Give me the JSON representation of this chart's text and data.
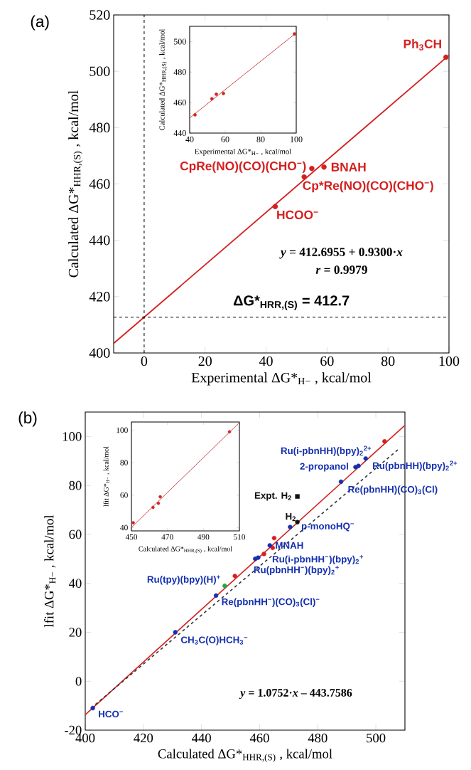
{
  "chart_data": [
    {
      "type": "scatter",
      "title": "(a)",
      "xlabel": "Experimental ΔG*$_{H−}$ , kcal/mol",
      "ylabel": "Calculated ΔG*$_{HHR,(S)}$ , kcal/mol",
      "xlim": [
        -10,
        100
      ],
      "ylim": [
        400,
        520
      ],
      "xticks": [
        0,
        20,
        40,
        60,
        80,
        100
      ],
      "yticks": [
        400,
        420,
        440,
        460,
        480,
        500,
        520
      ],
      "series": [
        {
          "marker": "circle",
          "color": "#d42020",
          "x": [
            43,
            52.5,
            55,
            59,
            99
          ],
          "values": [
            452,
            462.5,
            465.5,
            466,
            505
          ]
        },
        {
          "type": "line",
          "marker": "none",
          "color": "#d42020",
          "x": [
            -10,
            100
          ],
          "values": [
            403.4,
            505.7
          ]
        }
      ],
      "ref_lines": [
        {
          "axis": "x",
          "value": 0,
          "line_style": "dashed"
        },
        {
          "axis": "y",
          "value": 412.7,
          "label": "ΔG*$_{HRR,(S)}$ = 412.7",
          "line_style": "dashed"
        }
      ],
      "annotations": [
        {
          "text": "Ph$_{3}$CH",
          "x": 99,
          "y": 505
        },
        {
          "text": "CpRe(NO)(CO)(CHO$^{−}$)",
          "x": 55,
          "y": 465.5
        },
        {
          "text": "BNAH",
          "x": 59,
          "y": 466
        },
        {
          "text": "Cp*Re(NO)(CO)(CHO$^{−}$)",
          "x": 52.5,
          "y": 462.5
        },
        {
          "text": "HCOO$^{−}$",
          "x": 43,
          "y": 452
        },
        "*y* = 412.6955 + 0.9300·*x*",
        "*r* = 0.9979"
      ]
    },
    {
      "type": "scatter",
      "xlabel": "Experimental ΔG*$_{H−}$ , kcal/mol",
      "ylabel": "Calculated ΔG*$_{HHR,(S)}$ , kcal/mol",
      "xlim": [
        40,
        100
      ],
      "ylim": [
        440,
        510
      ],
      "xticks": [
        40,
        60,
        80,
        100
      ],
      "yticks": [
        440,
        460,
        480,
        500
      ],
      "series": [
        {
          "marker": "circle",
          "color": "#d42020",
          "x": [
            43,
            52.5,
            55,
            59,
            99
          ],
          "values": [
            452,
            462.5,
            465.5,
            466,
            505
          ]
        },
        {
          "type": "line",
          "marker": "none",
          "color": "#c83c3c",
          "x": [
            40,
            100
          ],
          "values": [
            449.9,
            505.7
          ]
        }
      ]
    },
    {
      "type": "scatter",
      "title": "(b)",
      "xlabel": "Calculated ΔG*$_{HHR,(S)}$ , kcal/mol",
      "ylabel": "lfit ΔG*$_{H−}$ , kcal/mol",
      "xlim": [
        400,
        510
      ],
      "ylim": [
        -20,
        110
      ],
      "xticks": [
        400,
        420,
        440,
        460,
        480,
        500
      ],
      "yticks": [
        -20,
        0,
        20,
        40,
        60,
        80,
        100
      ],
      "series": [
        {
          "type": "line",
          "marker": "none",
          "color": "#d42020",
          "x": [
            400,
            510
          ],
          "values": [
            -13.7,
            104.6
          ]
        },
        {
          "type": "line",
          "marker": "none",
          "line_style": "dashed",
          "color": "#333333",
          "x": [
            402,
            508
          ],
          "values": [
            -11,
            95
          ]
        },
        {
          "marker": "circle",
          "color": "#d42020",
          "x": [
            451.5,
            461.5,
            464.5,
            465,
            503
          ],
          "values": [
            43,
            52,
            54.5,
            58.5,
            98
          ]
        },
        {
          "marker": "circle",
          "color": "#1530b0",
          "colors": [
            "#1530b0",
            "#1530b0",
            "#1530b0",
            "#22aa44",
            "#1530b0",
            "#1530b0",
            "#1530b0",
            "#1530b0",
            "#1530b0",
            "#1530b0",
            "#1530b0",
            "#1530b0"
          ],
          "x": [
            402.6,
            431,
            445,
            448,
            458.5,
            459.5,
            463.5,
            470.5,
            488,
            493,
            494,
            496.5
          ],
          "values": [
            -11,
            20,
            35,
            39,
            50,
            50.5,
            55.5,
            63,
            81.5,
            87.5,
            88,
            91
          ]
        },
        {
          "marker": "circle",
          "color": "#111111",
          "x": [
            473
          ],
          "values": [
            65
          ]
        },
        {
          "marker": "square",
          "color": "#111111",
          "x": [
            473
          ],
          "values": [
            75.5
          ]
        }
      ],
      "annotations": [
        {
          "text": "HCO$^{−}$",
          "x": 402.6,
          "y": -11
        },
        {
          "text": "CH$_{3}$C(O)HCH$_{3}$$^{−}$",
          "x": 431,
          "y": 20
        },
        {
          "text": "Re(pbnHH$^{−}$)(CO)$_{3}$(Cl)$^{−}$",
          "x": 445,
          "y": 35
        },
        {
          "text": "Ru(tpy)(bpy)(H)$^{+}$",
          "x": 448,
          "y": 39
        },
        {
          "text": "Ru(pbnHH$^{−}$)(bpy)$_{2}$$^{+}$",
          "x": 458.5,
          "y": 50
        },
        {
          "text": "Ru(i-pbnHH$^{−}$)(bpy)$_{2}$$^{+}$",
          "x": 459.5,
          "y": 50.5
        },
        {
          "text": "MNAH",
          "x": 463.5,
          "y": 55.5
        },
        {
          "text": "p-monoHQ$^{−}$",
          "x": 470.5,
          "y": 63
        },
        {
          "text": "H$_{2}$",
          "x": 473,
          "y": 65
        },
        {
          "text": "Expt. H$_{2}$",
          "x": 473,
          "y": 75.5
        },
        {
          "text": "Re(pbnHH)(CO)$_{3}$(Cl)",
          "x": 488,
          "y": 81.5
        },
        {
          "text": "2-propanol",
          "x": 493,
          "y": 87.5
        },
        {
          "text": "Ru(pbnHH)(bpy)$_{2}$$^{2+}$",
          "x": 494,
          "y": 88
        },
        {
          "text": "Ru(i-pbnHH)(bpy)$_{2}$$^{2+}$",
          "x": 496.5,
          "y": 91
        },
        "*y* = 1.0752·*x* – 443.7586"
      ]
    },
    {
      "type": "scatter",
      "xlabel": "Calculated ΔG*$_{HHR,(S)}$ , kcal/mol",
      "ylabel": "lfit ΔG*$_{H−}$ , kcal/mol",
      "xlim": [
        450,
        510
      ],
      "ylim": [
        38,
        105
      ],
      "xticks": [
        450,
        470,
        490,
        510
      ],
      "yticks": [
        40,
        60,
        80,
        100
      ],
      "series": [
        {
          "marker": "circle",
          "color": "#d42020",
          "x": [
            451,
            462,
            465,
            466,
            504.5
          ],
          "values": [
            43,
            52.5,
            55,
            59,
            99
          ]
        },
        {
          "type": "line",
          "marker": "none",
          "color": "#c83c3c",
          "x": [
            450,
            510
          ],
          "values": [
            40.1,
            104.6
          ]
        }
      ]
    }
  ]
}
